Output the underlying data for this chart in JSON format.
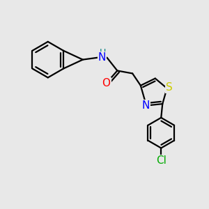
{
  "background_color": "#e8e8e8",
  "line_color": "#000000",
  "line_width": 1.6,
  "atom_colors": {
    "N": "#0000ff",
    "O": "#ff0000",
    "S": "#cccc00",
    "Cl": "#00aa00",
    "H": "#008080",
    "C": "#000000"
  },
  "font_size_atom": 11,
  "font_size_h": 9
}
